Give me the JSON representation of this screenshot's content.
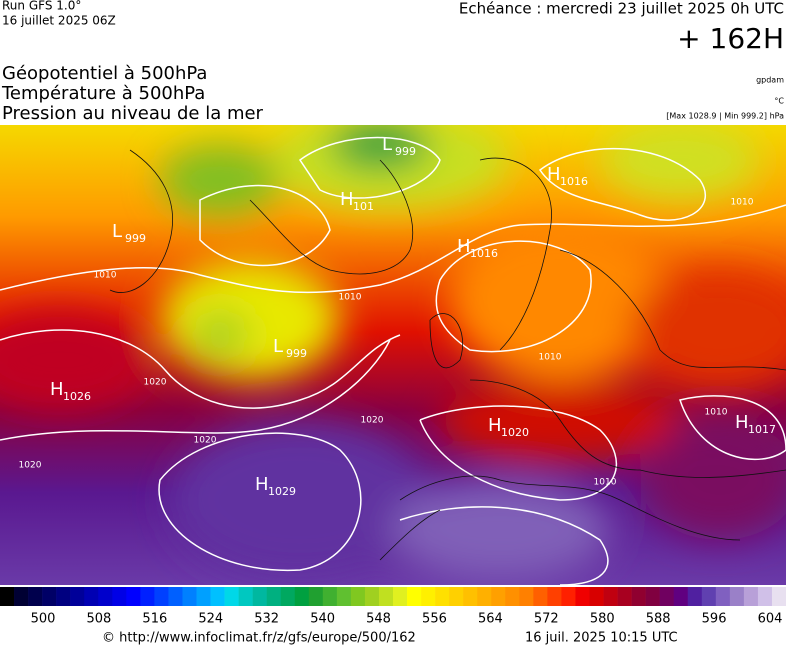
{
  "header": {
    "run": "Run GFS 1.0°",
    "run_date": "16 juillet 2025 06Z",
    "echeance": "Echéance : mercredi 23 juillet 2025 0h UTC",
    "hour": "+ 162H",
    "layers": [
      "Géopotentiel à 500hPa",
      "Température à 500hPa",
      "Pression au niveau de la mer"
    ],
    "units": [
      "gpdam",
      "°C",
      "[Max 1028.9 | Min 999.2] hPa"
    ]
  },
  "map": {
    "pressure_centers": [
      {
        "letter": "L",
        "value": "999"
      },
      {
        "letter": "H",
        "value": "1016"
      },
      {
        "letter": "H",
        "value": "101"
      },
      {
        "letter": "L",
        "value": "999"
      },
      {
        "letter": "H",
        "value": "1016"
      },
      {
        "letter": "L",
        "value": "999"
      },
      {
        "letter": "H",
        "value": "1026"
      },
      {
        "letter": "H",
        "value": "1020"
      },
      {
        "letter": "H",
        "value": "1017"
      },
      {
        "letter": "H",
        "value": "1029"
      }
    ],
    "isobar_labels": [
      "1010",
      "1010",
      "1020",
      "1020",
      "1020",
      "1020",
      "1010",
      "1010",
      "1010",
      "1010"
    ]
  },
  "colorbar": {
    "labels": [
      "500",
      "508",
      "516",
      "524",
      "532",
      "540",
      "548",
      "556",
      "564",
      "572",
      "580",
      "588",
      "596",
      "604"
    ],
    "colors": [
      "#000000",
      "#000033",
      "#00004d",
      "#000066",
      "#000080",
      "#000099",
      "#0000b3",
      "#0000cc",
      "#0000e6",
      "#0000ff",
      "#0020ff",
      "#0040ff",
      "#0060ff",
      "#0080ff",
      "#00a0ff",
      "#00c0ff",
      "#00d8e8",
      "#00c8c0",
      "#00b8a0",
      "#00b080",
      "#00a860",
      "#00a040",
      "#20a030",
      "#40b030",
      "#60c030",
      "#80c820",
      "#a0d020",
      "#c0e020",
      "#e0f020",
      "#ffff00",
      "#fff000",
      "#ffe000",
      "#ffd000",
      "#ffc000",
      "#ffb000",
      "#ffa000",
      "#ff9000",
      "#ff8000",
      "#ff6000",
      "#ff4000",
      "#ff2000",
      "#f00000",
      "#d80000",
      "#c00010",
      "#a80020",
      "#900030",
      "#800040",
      "#700060",
      "#600080",
      "#5020a0",
      "#6040b0",
      "#8060c0",
      "#9a80c8",
      "#b8a0d8",
      "#d0c0e8",
      "#e8e0f0"
    ]
  },
  "footer": {
    "url": "© http://www.infoclimat.fr/z/gfs/europe/500/162",
    "generated": "16 juil. 2025 10:15 UTC"
  }
}
